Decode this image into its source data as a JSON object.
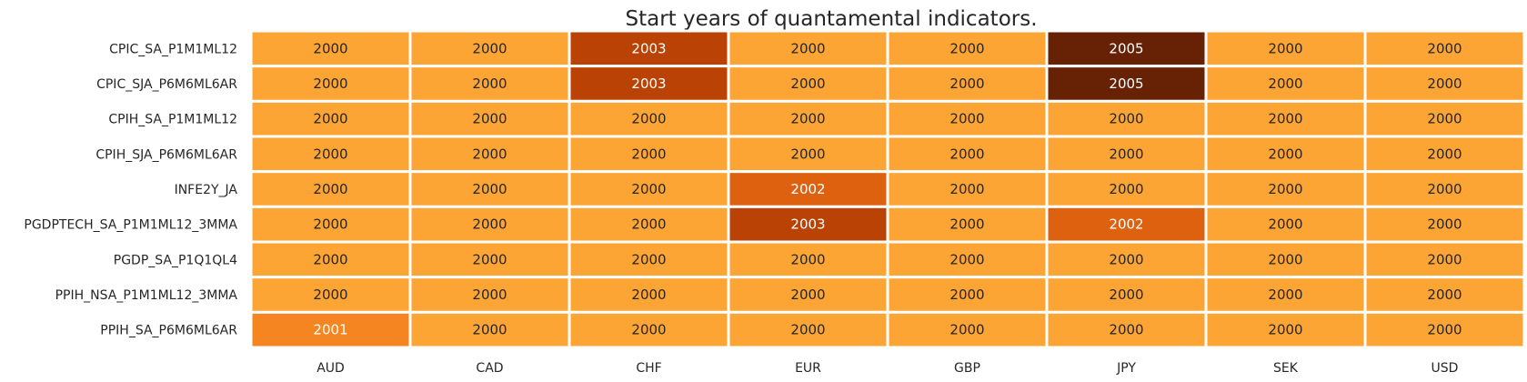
{
  "chart_data": {
    "type": "heatmap",
    "title": "Start years of quantamental indicators.",
    "xlabel": "",
    "ylabel": "",
    "x_categories": [
      "AUD",
      "CAD",
      "CHF",
      "EUR",
      "GBP",
      "JPY",
      "SEK",
      "USD"
    ],
    "y_categories": [
      "CPIC_SA_P1M1ML12",
      "CPIC_SJA_P6M6ML6AR",
      "CPIH_SA_P1M1ML12",
      "CPIH_SJA_P6M6ML6AR",
      "INFE2Y_JA",
      "PGDPTECH_SA_P1M1ML12_3MMA",
      "PGDP_SA_P1Q1QL4",
      "PPIH_NSA_P1M1ML12_3MMA",
      "PPIH_SA_P6M6ML6AR"
    ],
    "values": [
      [
        2000,
        2000,
        2003,
        2000,
        2000,
        2005,
        2000,
        2000
      ],
      [
        2000,
        2000,
        2003,
        2000,
        2000,
        2005,
        2000,
        2000
      ],
      [
        2000,
        2000,
        2000,
        2000,
        2000,
        2000,
        2000,
        2000
      ],
      [
        2000,
        2000,
        2000,
        2000,
        2000,
        2000,
        2000,
        2000
      ],
      [
        2000,
        2000,
        2000,
        2002,
        2000,
        2000,
        2000,
        2000
      ],
      [
        2000,
        2000,
        2000,
        2003,
        2000,
        2002,
        2000,
        2000
      ],
      [
        2000,
        2000,
        2000,
        2000,
        2000,
        2000,
        2000,
        2000
      ],
      [
        2000,
        2000,
        2000,
        2000,
        2000,
        2000,
        2000,
        2000
      ],
      [
        2001,
        2000,
        2000,
        2000,
        2000,
        2000,
        2000,
        2000
      ]
    ],
    "colorscale": {
      "2000": "#fca534",
      "2001": "#f58520",
      "2002": "#de6110",
      "2003": "#b94204",
      "2005": "#672205"
    },
    "label_colors": {
      "light": "#ffffff",
      "dark": "#262626"
    },
    "dark_text_values": [
      2000
    ]
  }
}
